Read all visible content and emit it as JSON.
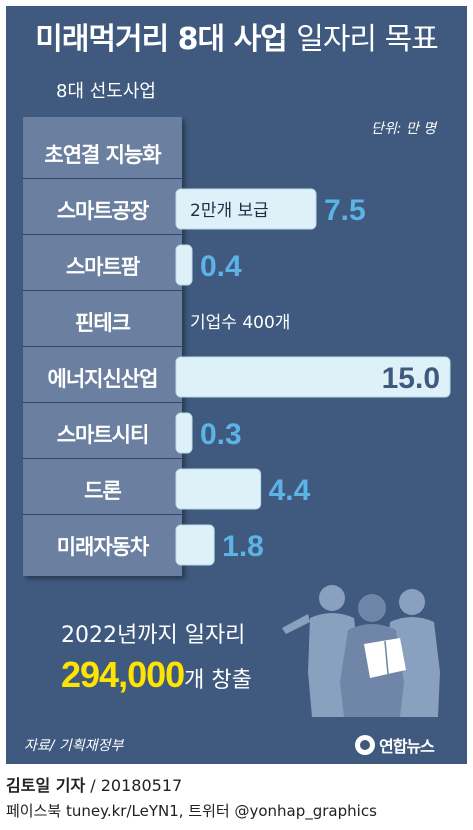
{
  "header": {
    "title_bold": "미래먹거리 8대 사업",
    "title_light": "일자리 목표",
    "subtitle": "8대 선도사업",
    "unit": "단위: 만 명"
  },
  "chart_data": {
    "type": "bar",
    "orientation": "horizontal",
    "categories": [
      "초연결 지능화",
      "스마트공장",
      "스마트팜",
      "핀테크",
      "에너지신산업",
      "스마트시티",
      "드론",
      "미래자동차"
    ],
    "values": [
      null,
      7.5,
      0.4,
      null,
      15.0,
      0.3,
      4.4,
      1.8
    ],
    "value_labels": [
      "",
      "7.5",
      "0.4",
      "",
      "15.0",
      "0.3",
      "4.4",
      "1.8"
    ],
    "annotations": [
      "",
      "2만개 보급",
      "",
      "기업수 400개",
      "",
      "",
      "",
      ""
    ],
    "xlim": [
      0,
      15
    ],
    "colors": {
      "bar": "#dff1f8",
      "bar_stroke": "#b8dcea",
      "value_label": "#5cb3e6",
      "value_label_inside": "#3f5a7e",
      "annotation": "#ffffff"
    }
  },
  "summary": {
    "line1": "2022년까지 일자리",
    "number": "294,000",
    "suffix": "개 창출"
  },
  "footer": {
    "source": "자료/ 기획재정부",
    "logo": "연합뉴스",
    "reporter": "김토일 기자",
    "date": "/ 20180517",
    "contact": "페이스북 tuney.kr/LeYN1, 트위터 @yonhap_graphics"
  },
  "icons": {
    "logo_mark": "yonhap-logo-icon",
    "people_silhouette": "people-silhouette-icon"
  }
}
